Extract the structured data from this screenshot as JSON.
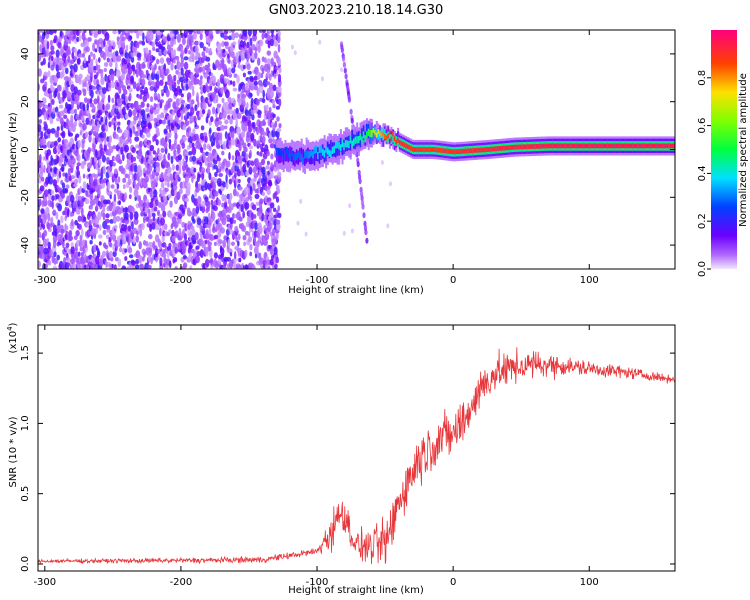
{
  "title": "GN03.2023.210.18.14.G30",
  "chart_data": [
    {
      "type": "heatmap",
      "xlabel": "Height of straight line (km)",
      "ylabel": "Frequency (Hz)",
      "xlim": [
        -305,
        163
      ],
      "ylim": [
        -50,
        50
      ],
      "xticks": [
        -300,
        -200,
        -100,
        0,
        100
      ],
      "yticks": [
        -40,
        -20,
        0,
        20,
        40
      ],
      "colorbar": {
        "label": "Normalized spectral amplitude",
        "range": [
          0,
          1
        ],
        "ticks": [
          "0.0",
          "0.2",
          "0.4",
          "0.6",
          "0.8"
        ],
        "tick_values": [
          0,
          0.2,
          0.4,
          0.6,
          0.8
        ],
        "colormap": "rainbow-purple-to-magenta"
      },
      "noise_region": {
        "x_range": [
          -305,
          -128
        ],
        "y_range": [
          -50,
          50
        ],
        "amplitude": 0.15
      },
      "ridge": [
        {
          "x": -130,
          "y": -2,
          "amp": 0.25
        },
        {
          "x": -110,
          "y": -3,
          "amp": 0.3
        },
        {
          "x": -95,
          "y": -1,
          "amp": 0.38
        },
        {
          "x": -80,
          "y": 2,
          "amp": 0.4
        },
        {
          "x": -65,
          "y": 6,
          "amp": 0.45
        },
        {
          "x": -58,
          "y": 7,
          "amp": 0.7
        },
        {
          "x": -50,
          "y": 6,
          "amp": 0.85
        },
        {
          "x": -40,
          "y": 3,
          "amp": 0.9
        },
        {
          "x": -30,
          "y": 0,
          "amp": 0.9
        },
        {
          "x": -15,
          "y": 0,
          "amp": 0.88
        },
        {
          "x": 0,
          "y": -1,
          "amp": 0.9
        },
        {
          "x": 25,
          "y": 0,
          "amp": 0.92
        },
        {
          "x": 45,
          "y": 1,
          "amp": 0.93
        },
        {
          "x": 70,
          "y": 1.5,
          "amp": 0.94
        },
        {
          "x": 100,
          "y": 1.5,
          "amp": 0.95
        },
        {
          "x": 130,
          "y": 1.5,
          "amp": 0.95
        },
        {
          "x": 163,
          "y": 1.5,
          "amp": 0.95
        }
      ],
      "dispersion_line": [
        {
          "x": -82,
          "y": 44
        },
        {
          "x": -76,
          "y": 20
        },
        {
          "x": -70,
          "y": -5
        },
        {
          "x": -63,
          "y": -40
        }
      ]
    },
    {
      "type": "line",
      "xlabel": "Height of straight line (km)",
      "ylabel": "SNR (10 * v/v)",
      "multiplier": "(x10",
      "multiplier_exp": "4",
      "multiplier_close": ")",
      "xlim": [
        -305,
        163
      ],
      "ylim": [
        -0.05,
        1.7
      ],
      "xticks": [
        -300,
        -200,
        -100,
        0,
        100
      ],
      "yticks": [
        "0.0",
        "0.5",
        "1.0",
        "1.5"
      ],
      "ytick_values": [
        0,
        0.5,
        1.0,
        1.5
      ],
      "series": [
        {
          "color": "#e8373b",
          "points": [
            {
              "x": -305,
              "y": 0.02
            },
            {
              "x": -200,
              "y": 0.025
            },
            {
              "x": -140,
              "y": 0.03
            },
            {
              "x": -120,
              "y": 0.06
            },
            {
              "x": -100,
              "y": 0.09
            },
            {
              "x": -90,
              "y": 0.22
            },
            {
              "x": -82,
              "y": 0.38
            },
            {
              "x": -76,
              "y": 0.25
            },
            {
              "x": -72,
              "y": 0.14
            },
            {
              "x": -60,
              "y": 0.12
            },
            {
              "x": -48,
              "y": 0.16
            },
            {
              "x": -40,
              "y": 0.45
            },
            {
              "x": -25,
              "y": 0.75
            },
            {
              "x": -10,
              "y": 0.9
            },
            {
              "x": 0,
              "y": 0.92
            },
            {
              "x": 10,
              "y": 1.05
            },
            {
              "x": 20,
              "y": 1.25
            },
            {
              "x": 30,
              "y": 1.35
            },
            {
              "x": 45,
              "y": 1.4
            },
            {
              "x": 60,
              "y": 1.42
            },
            {
              "x": 80,
              "y": 1.41
            },
            {
              "x": 100,
              "y": 1.39
            },
            {
              "x": 130,
              "y": 1.36
            },
            {
              "x": 163,
              "y": 1.31
            }
          ],
          "noise_amplitude": [
            {
              "x": -305,
              "a": 0.01
            },
            {
              "x": -100,
              "a": 0.02
            },
            {
              "x": -90,
              "a": 0.12
            },
            {
              "x": -72,
              "a": 0.08
            },
            {
              "x": -45,
              "a": 0.15
            },
            {
              "x": 0,
              "a": 0.14
            },
            {
              "x": 40,
              "a": 0.1
            },
            {
              "x": 90,
              "a": 0.05
            },
            {
              "x": 163,
              "a": 0.02
            }
          ]
        }
      ]
    }
  ]
}
